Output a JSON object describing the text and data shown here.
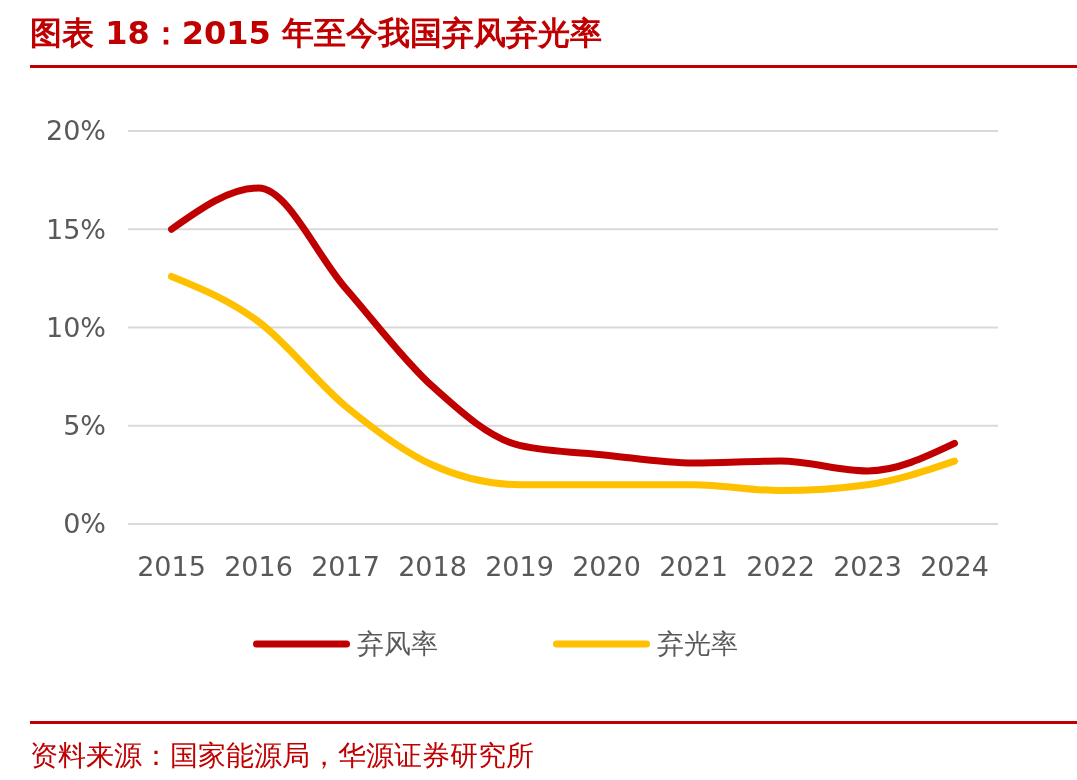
{
  "chart_data": {
    "type": "line",
    "title": "图表 18：2015 年至今我国弃风弃光率",
    "categories": [
      "2015",
      "2016",
      "2017",
      "2018",
      "2019",
      "2020",
      "2021",
      "2022",
      "2023",
      "2024"
    ],
    "series": [
      {
        "name": "弃风率",
        "color": "#c00000",
        "values": [
          15,
          17.1,
          12,
          7,
          4,
          3.5,
          3.1,
          3.2,
          2.7,
          4.1
        ]
      },
      {
        "name": "弃光率",
        "color": "#ffc000",
        "values": [
          12.6,
          10.3,
          6,
          3,
          2,
          2,
          2,
          1.7,
          2,
          3.2
        ]
      }
    ],
    "ylim": [
      0,
      20
    ],
    "yticks": [
      {
        "value": 0,
        "label": "0%"
      },
      {
        "value": 5,
        "label": "5%"
      },
      {
        "value": 10,
        "label": "10%"
      },
      {
        "value": 15,
        "label": "15%"
      },
      {
        "value": 20,
        "label": "20%"
      }
    ],
    "grid": "y",
    "legend": "bottom",
    "marker": "none",
    "line_style": "solid",
    "annotations": [
      "资料来源：国家能源局，华源证券研究所"
    ]
  }
}
